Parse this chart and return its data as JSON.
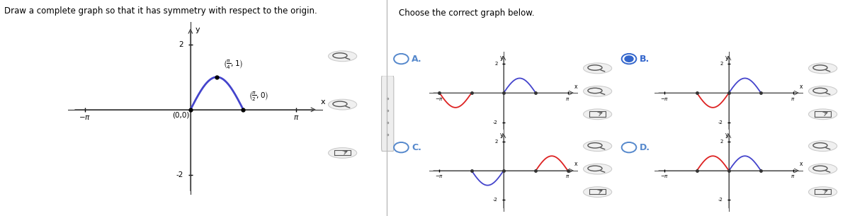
{
  "title_left": "Draw a complete graph so that it has symmetry with respect to the origin.",
  "title_right": "Choose the correct graph below.",
  "main_curve_color": "#4444cc",
  "sym_curve_color": "#dd2222",
  "text_color": "#000000",
  "radio_unsel_color": "#5588cc",
  "radio_sel_color": "#3366cc",
  "background": "#ffffff",
  "selected": "B",
  "pi": 3.14159265358979,
  "zoom_icon_color": "#888888",
  "divider_color": "#cccccc",
  "axis_color": "#444444",
  "dot_color": "#333333"
}
